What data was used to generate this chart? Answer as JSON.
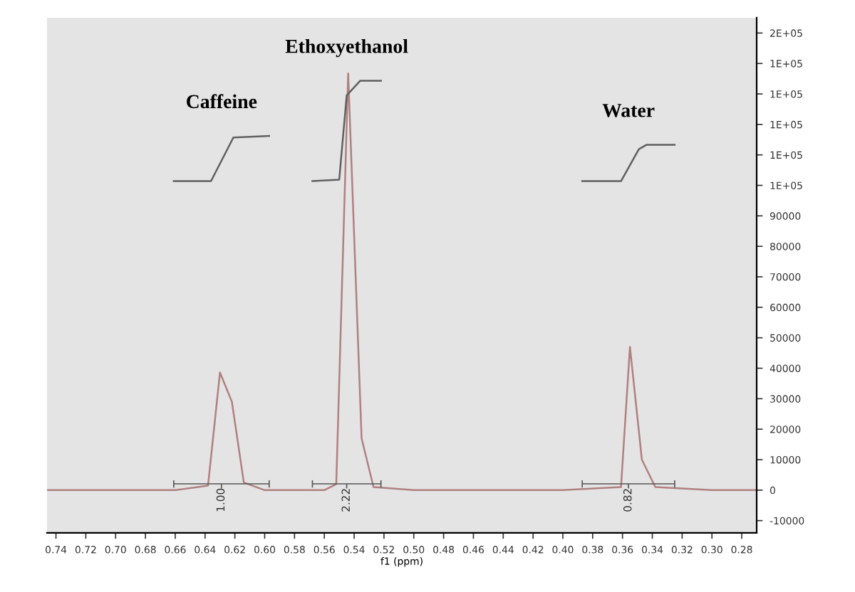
{
  "chart_data": {
    "type": "line",
    "xlabel": "f1 (ppm)",
    "xlim": [
      0.746,
      0.27
    ],
    "ylim": [
      -14000,
      155000
    ],
    "xticks": [
      0.74,
      0.72,
      {
        "value": 0.7,
        "label": "0.70"
      },
      0.68,
      0.66,
      0.64,
      0.62,
      {
        "value": 0.6,
        "label": "0.60"
      },
      0.58,
      0.56,
      0.54,
      0.52,
      {
        "value": 0.5,
        "label": "0.50"
      },
      0.48,
      0.46,
      0.44,
      0.42,
      {
        "value": 0.4,
        "label": "0.40"
      },
      0.38,
      0.36,
      0.34,
      0.32,
      {
        "value": 0.3,
        "label": "0.30"
      },
      0.28
    ],
    "yticks": [
      -10000,
      0,
      10000,
      20000,
      30000,
      40000,
      50000,
      60000,
      70000,
      80000,
      90000,
      {
        "value": 100000,
        "label": "1E+05"
      },
      {
        "value": 110000,
        "label": "1E+05"
      },
      {
        "value": 120000,
        "label": "1E+05"
      },
      {
        "value": 130000,
        "label": "1E+05"
      },
      {
        "value": 140000,
        "label": "1E+05"
      },
      {
        "value": 150000,
        "label": "2E+05"
      }
    ],
    "grid": false,
    "legend": false,
    "marker": "none",
    "line_style": "solid",
    "series": [
      {
        "color": "#b08080",
        "x": [
          0.746,
          0.66,
          0.638,
          0.63,
          0.622,
          0.614,
          0.6,
          0.56,
          0.552,
          0.544,
          0.535,
          0.527,
          0.5,
          0.4,
          0.361,
          0.355,
          0.347,
          0.338,
          0.3,
          0.27
        ],
        "values": [
          0,
          0,
          1500,
          38600,
          29000,
          2500,
          0,
          0,
          2000,
          136700,
          17000,
          1000,
          0,
          0,
          1000,
          47000,
          10000,
          1000,
          0,
          0
        ]
      },
      {
        "color": "#606060",
        "x": [
          0.661,
          0.636,
          0.621,
          0.597
        ],
        "values": [
          101400,
          101400,
          115700,
          116200
        ]
      },
      {
        "color": "#606060",
        "x": [
          0.568,
          0.55,
          0.545,
          0.536,
          0.522
        ],
        "values": [
          101400,
          101900,
          129500,
          134300,
          134300
        ]
      },
      {
        "color": "#606060",
        "x": [
          0.387,
          0.361,
          0.349,
          0.344,
          0.325
        ],
        "values": [
          101400,
          101400,
          111900,
          113300,
          113300
        ]
      }
    ],
    "annotations": [
      "Caffeine",
      "Ethoxyethanol",
      "Water",
      "1.00",
      "2.22",
      "0.82"
    ]
  }
}
